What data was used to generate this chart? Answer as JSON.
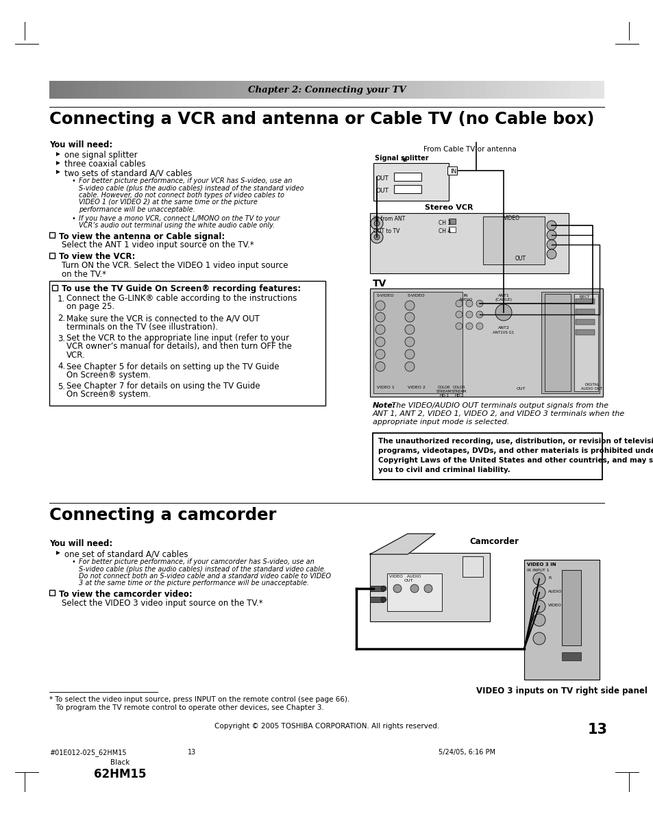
{
  "page_bg": "#ffffff",
  "chapter_header_text": "Chapter 2: Connecting your TV",
  "section1_title": "Connecting a VCR and antenna or Cable TV (no Cable box)",
  "section2_title": "Connecting a camcorder",
  "footer_left": "#01E012-025_62HM15",
  "footer_center": "13",
  "footer_right": "5/24/05, 6:16 PM",
  "footer_model": "62HM15",
  "footer_color": "Black",
  "copyright_text": "Copyright © 2005 TOSHIBA CORPORATION. All rights reserved.",
  "page_number": "13",
  "you_will_need_1": "You will need:",
  "bullets_1": [
    "one signal splitter",
    "three coaxial cables",
    "two sets of standard A/V cables"
  ],
  "sub_bullet_1": "For better picture performance, if your VCR has S-video, use an\nS-video cable (plus the audio cables) instead of the standard video\ncable. However, do not connect both types of video cables to\nVIDEO 1 (or VIDEO 2) at the same time or the picture\nperformance will be unacceptable.",
  "sub_bullet_2": "If you have a mono VCR, connect L/MONO on the TV to your\nVCR’s audio out terminal using the white audio cable only.",
  "recording_steps": [
    "Connect the G-LINK® cable according to the instructions\non page 25.",
    "Make sure the VCR is connected to the A/V OUT\nterminals on the TV (see illustration).",
    "Set the VCR to the appropriate line input (refer to your\nVCR owner’s manual for details), and then turn OFF the\nVCR.",
    "See Chapter 5 for details on setting up the TV Guide\nOn Screen® system.",
    "See Chapter 7 for details on using the TV Guide\nOn Screen® system."
  ],
  "note_text_bold": "Note:",
  "note_text_italic": " The VIDEO/AUDIO OUT terminals output signals from the\nANT 1, ANT 2, VIDEO 1, VIDEO 2, and VIDEO 3 terminals when the\nappropriate input mode is selected.",
  "warning_text": "The unauthorized recording, use, distribution, or revision of television\nprograms, videotapes, DVDs, and other materials is prohibited under the\nCopyright Laws of the United States and other countries, and may subject\nyou to civil and criminal liability.",
  "bullets_2": [
    "one set of standard A/V cables"
  ],
  "sub_bullet_3": "For better picture performance, if your camcorder has S-video, use an\nS-video cable (plus the audio cables) instead of the standard video cable.\nDo not connect both an S-video cable and a standard video cable to VIDEO\n3 at the same time or the picture performance will be unacceptable.",
  "camcorder_view_text": "Select the VIDEO 3 video input source on the TV.*",
  "footnote_line1": "* To select the video input source, press INPUT on the remote control (see page 66).",
  "footnote_line2": "   To program the TV remote control to operate other devices, see Chapter 3.",
  "video3_caption": "VIDEO 3 inputs on TV right side panel",
  "from_cable_text": "From Cable TV or antenna"
}
